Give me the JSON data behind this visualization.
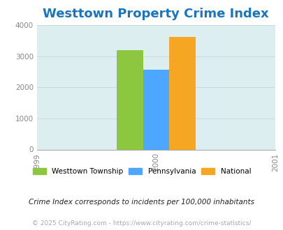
{
  "title": "Westtown Property Crime Index",
  "title_color": "#1a75bc",
  "title_fontsize": 13,
  "bar_values": [
    3200,
    2580,
    3620
  ],
  "bar_colors": [
    "#8dc63f",
    "#4da6ff",
    "#f5a623"
  ],
  "bar_labels": [
    "Westtown Township",
    "Pennsylvania",
    "National"
  ],
  "bar_width": 0.22,
  "bar_positions": [
    1999.78,
    2000.0,
    2000.22
  ],
  "xlim": [
    1999,
    2001
  ],
  "ylim": [
    0,
    4000
  ],
  "xticks": [
    1999,
    2000,
    2001
  ],
  "yticks": [
    0,
    1000,
    2000,
    3000,
    4000
  ],
  "plot_bg_color": "#ddeef0",
  "fig_bg_color": "#ffffff",
  "grid_color": "#c8dde0",
  "legend_labels": [
    "Westtown Township",
    "Pennsylvania",
    "National"
  ],
  "legend_colors": [
    "#8dc63f",
    "#4da6ff",
    "#f5a623"
  ],
  "footnote1": "Crime Index corresponds to incidents per 100,000 inhabitants",
  "footnote2": "© 2025 CityRating.com - https://www.cityrating.com/crime-statistics/",
  "footnote1_color": "#222222",
  "footnote2_color": "#aaaaaa",
  "tick_label_color": "#888888",
  "tick_fontsize": 7.5
}
